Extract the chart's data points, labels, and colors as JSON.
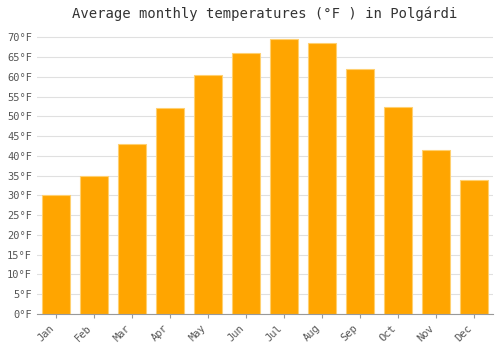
{
  "title": "Average monthly temperatures (°F ) in Polgárdi",
  "months": [
    "Jan",
    "Feb",
    "Mar",
    "Apr",
    "May",
    "Jun",
    "Jul",
    "Aug",
    "Sep",
    "Oct",
    "Nov",
    "Dec"
  ],
  "values": [
    30.0,
    35.0,
    43.0,
    52.0,
    60.5,
    66.0,
    69.5,
    68.5,
    62.0,
    52.5,
    41.5,
    34.0
  ],
  "bar_color": "#FFA500",
  "bar_edge_color": "#FFD070",
  "ylim": [
    0,
    72
  ],
  "yticks": [
    0,
    5,
    10,
    15,
    20,
    25,
    30,
    35,
    40,
    45,
    50,
    55,
    60,
    65,
    70
  ],
  "background_color": "#FFFFFF",
  "grid_color": "#E0E0E0",
  "title_fontsize": 10,
  "tick_fontsize": 7.5,
  "title_font": "monospace",
  "tick_font": "monospace",
  "bar_width": 0.75
}
